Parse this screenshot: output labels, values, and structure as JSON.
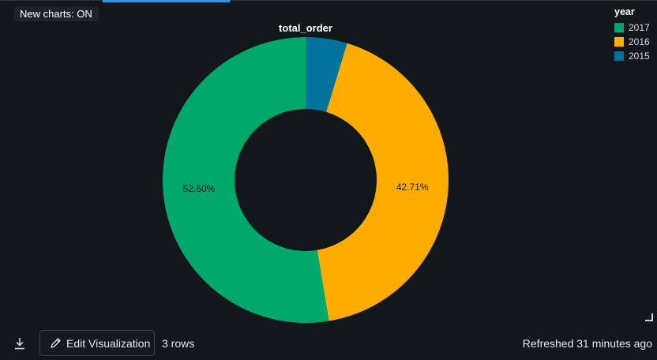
{
  "toolbar": {
    "new_charts_label": "New charts: ON"
  },
  "chart_data": {
    "type": "pie",
    "title": "total_order",
    "legend_title": "year",
    "legend_position": "top-right",
    "donut": true,
    "slices": [
      {
        "label": "2017",
        "percent": 52.6,
        "percent_label": "52.60%",
        "color": "#00a86b"
      },
      {
        "label": "2016",
        "percent": 42.71,
        "percent_label": "42.71%",
        "color": "#ffab00"
      },
      {
        "label": "2015",
        "percent": 4.69,
        "percent_label": "",
        "color": "#00729b"
      }
    ]
  },
  "footer": {
    "edit_label": "Edit Visualization",
    "rows_label": "3 rows",
    "refreshed_label": "Refreshed 31 minutes ago"
  },
  "icons": {
    "download": "download-icon",
    "edit": "pencil-icon",
    "resize": "resize-handle-icon"
  }
}
